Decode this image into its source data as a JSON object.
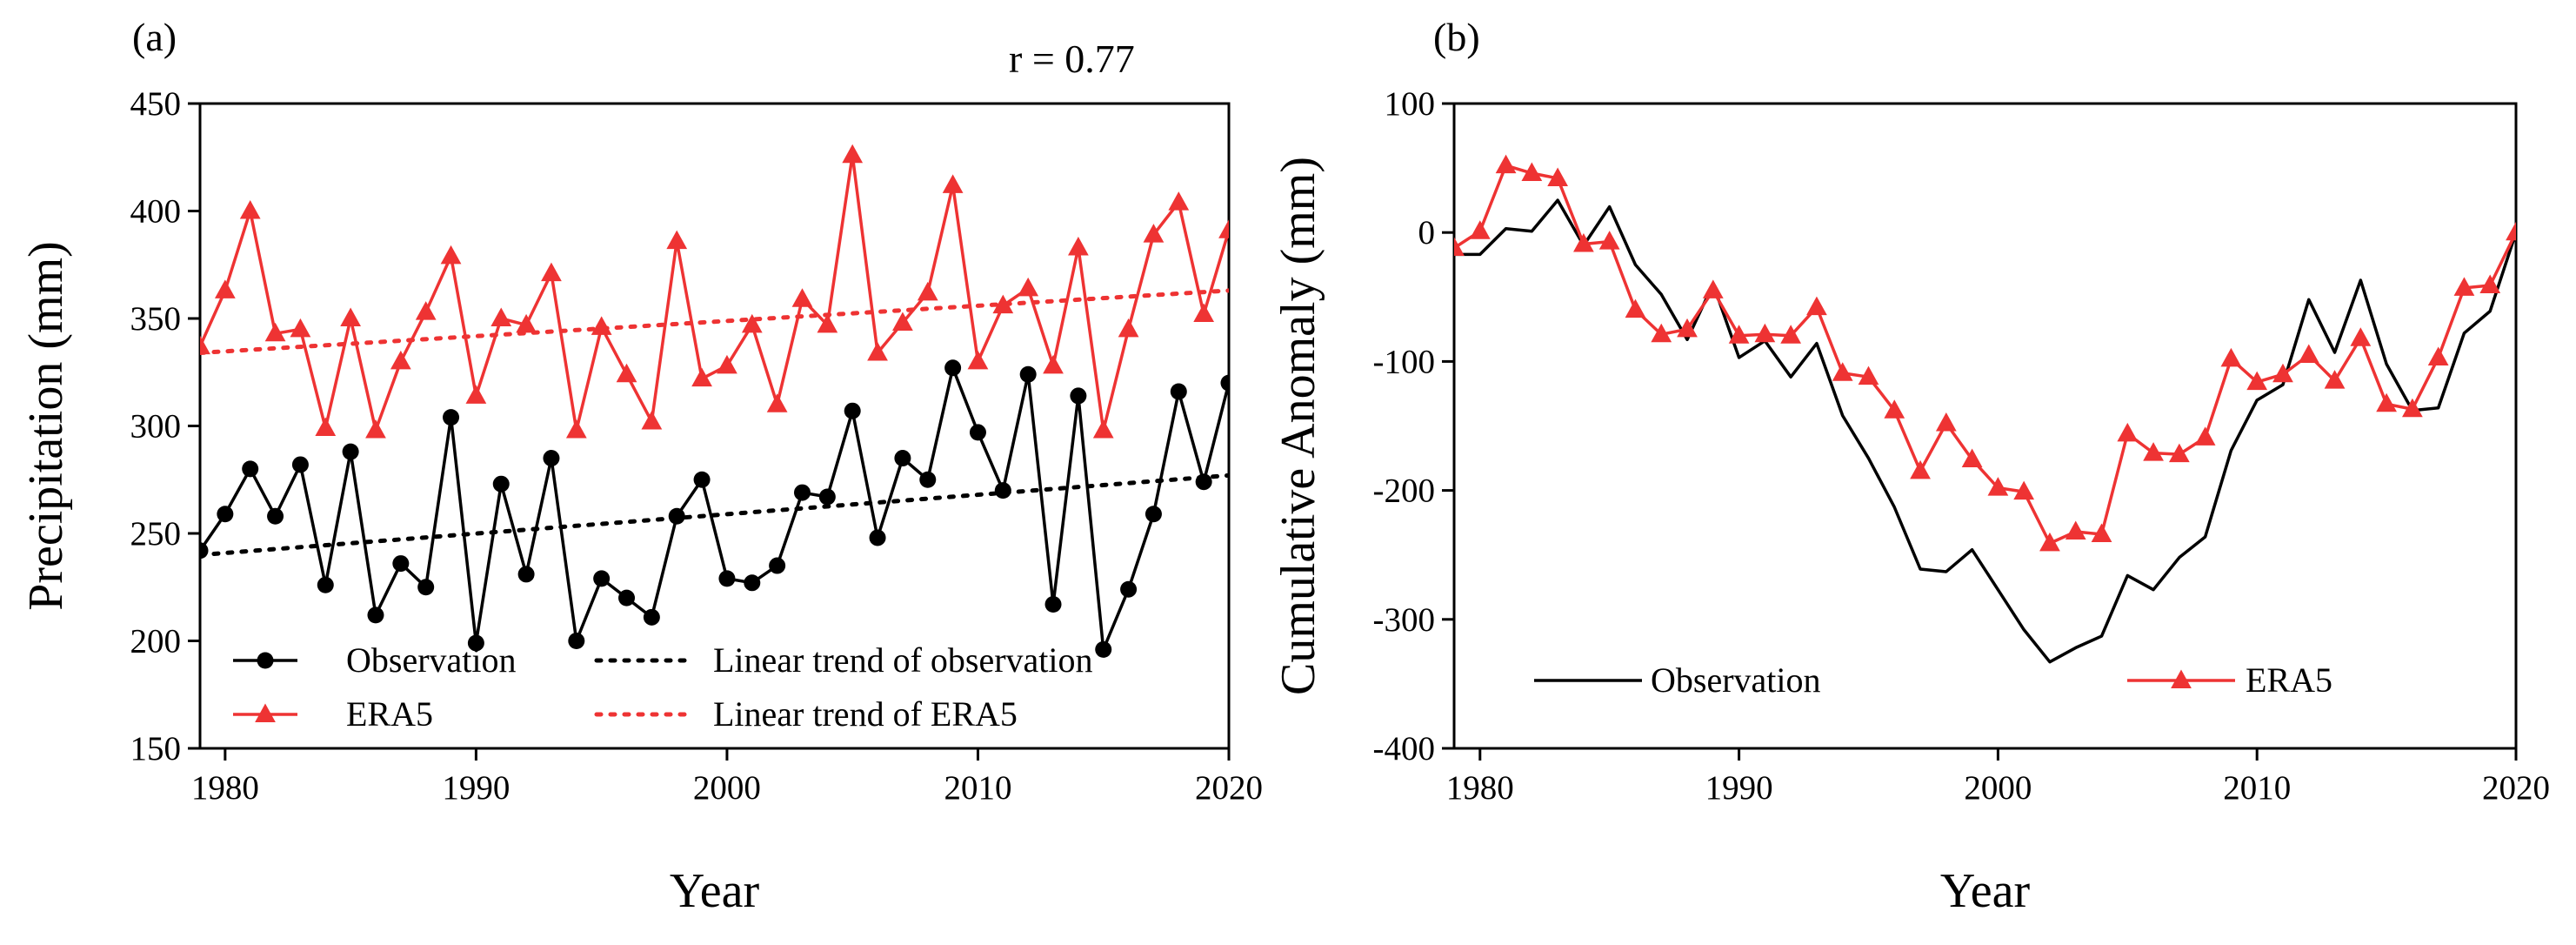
{
  "chart_data": [
    {
      "type": "line",
      "panel_label": "(a)",
      "annotation": "r = 0.77",
      "xlabel": "Year",
      "ylabel": "Precipitation (mm)",
      "xlim": [
        1979,
        2020
      ],
      "ylim": [
        150,
        450
      ],
      "xticks": [
        1980,
        1990,
        2000,
        2010,
        2020
      ],
      "yticks": [
        150,
        200,
        250,
        300,
        350,
        400,
        450
      ],
      "grid": false,
      "legend_position": "bottom",
      "x": [
        1979,
        1980,
        1981,
        1982,
        1983,
        1984,
        1985,
        1986,
        1987,
        1988,
        1989,
        1990,
        1991,
        1992,
        1993,
        1994,
        1995,
        1996,
        1997,
        1998,
        1999,
        2000,
        2001,
        2002,
        2003,
        2004,
        2005,
        2006,
        2007,
        2008,
        2009,
        2010,
        2011,
        2012,
        2013,
        2014,
        2015,
        2016,
        2017,
        2018,
        2019,
        2020
      ],
      "series": [
        {
          "name": "Observation",
          "color": "#000000",
          "marker": "circle",
          "values": [
            242,
            259,
            280,
            258,
            282,
            226,
            288,
            212,
            236,
            225,
            304,
            199,
            273,
            231,
            285,
            200,
            229,
            220,
            211,
            258,
            275,
            229,
            227,
            235,
            269,
            267,
            307,
            248,
            285,
            275,
            327,
            297,
            270,
            324,
            217,
            314,
            196,
            224,
            259,
            316,
            274,
            320
          ]
        },
        {
          "name": "ERA5",
          "color": "#ee3333",
          "marker": "triangle",
          "values": [
            337,
            363,
            400,
            343,
            345,
            299,
            350,
            298,
            330,
            353,
            379,
            314,
            350,
            347,
            371,
            298,
            346,
            324,
            302,
            386,
            322,
            328,
            347,
            310,
            359,
            347,
            426,
            334,
            348,
            362,
            412,
            330,
            356,
            364,
            328,
            383,
            298,
            345,
            389,
            404,
            352,
            391
          ]
        }
      ],
      "trends": [
        {
          "name": "Linear trend of observation",
          "color": "#000000",
          "style": "dotted",
          "x": [
            1979,
            2020
          ],
          "values": [
            240,
            277
          ]
        },
        {
          "name": "Linear trend of ERA5",
          "color": "#ee3333",
          "style": "dotted",
          "x": [
            1979,
            2020
          ],
          "values": [
            334,
            363
          ]
        }
      ]
    },
    {
      "type": "line",
      "panel_label": "(b)",
      "xlabel": "Year",
      "ylabel": "Cumulative Anomaly (mm)",
      "xlim": [
        1979,
        2020
      ],
      "ylim": [
        -400,
        100
      ],
      "xticks": [
        1980,
        1990,
        2000,
        2010,
        2020
      ],
      "yticks": [
        -400,
        -300,
        -200,
        -100,
        0,
        100
      ],
      "grid": false,
      "legend_position": "bottom",
      "x": [
        1979,
        1980,
        1981,
        1982,
        1983,
        1984,
        1985,
        1986,
        1987,
        1988,
        1989,
        1990,
        1991,
        1992,
        1993,
        1994,
        1995,
        1996,
        1997,
        1998,
        1999,
        2000,
        2001,
        2002,
        2003,
        2004,
        2005,
        2006,
        2007,
        2008,
        2009,
        2010,
        2011,
        2012,
        2013,
        2014,
        2015,
        2016,
        2017,
        2018,
        2019,
        2020
      ],
      "series": [
        {
          "name": "Observation",
          "color": "#000000",
          "marker": "none",
          "values": [
            -17,
            -17,
            3,
            1,
            25,
            -10,
            20,
            -25,
            -48,
            -83,
            -40,
            -97,
            -84,
            -112,
            -86,
            -142,
            -175,
            -213,
            -261,
            -263,
            -246,
            -277,
            -308,
            -333,
            -322,
            -313,
            -266,
            -277,
            -252,
            -236,
            -169,
            -130,
            -118,
            -52,
            -93,
            -37,
            -102,
            -138,
            -136,
            -78,
            -61,
            0
          ]
        },
        {
          "name": "ERA5",
          "color": "#ee3333",
          "marker": "triangle",
          "values": [
            -12,
            1,
            52,
            46,
            42,
            -9,
            -7,
            -60,
            -79,
            -75,
            -45,
            -80,
            -79,
            -80,
            -58,
            -109,
            -112,
            -138,
            -185,
            -148,
            -176,
            -198,
            -201,
            -241,
            -232,
            -234,
            -156,
            -171,
            -172,
            -159,
            -98,
            -116,
            -110,
            -95,
            -115,
            -82,
            -133,
            -137,
            -97,
            -43,
            -41,
            0
          ]
        }
      ]
    }
  ]
}
